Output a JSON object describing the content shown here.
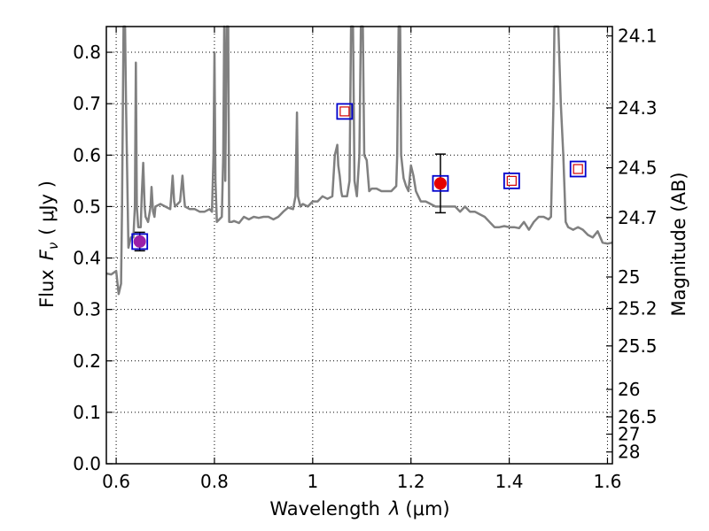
{
  "chart_data": {
    "type": "line",
    "xlabel_text": "Wavelength",
    "xlabel_symbol": "λ",
    "xlabel_unit": "(μm)",
    "ylabel_text": "Flux",
    "ylabel_symbol": "F",
    "ylabel_sub": "ν",
    "ylabel_unit": "( μJy )",
    "y2label": "Magnitude (AB)",
    "xlim": [
      0.58,
      1.61
    ],
    "ylim": [
      0.0,
      0.85
    ],
    "grid": true,
    "x_ticks": [
      {
        "value": 0.6,
        "label": "0.6"
      },
      {
        "value": 0.8,
        "label": "0.8"
      },
      {
        "value": 1.0,
        "label": "1"
      },
      {
        "value": 1.2,
        "label": "1.2"
      },
      {
        "value": 1.4,
        "label": "1.4"
      },
      {
        "value": 1.6,
        "label": "1.6"
      }
    ],
    "y_ticks": [
      {
        "value": 0.0,
        "label": "0.0"
      },
      {
        "value": 0.1,
        "label": "0.1"
      },
      {
        "value": 0.2,
        "label": "0.2"
      },
      {
        "value": 0.3,
        "label": "0.3"
      },
      {
        "value": 0.4,
        "label": "0.4"
      },
      {
        "value": 0.5,
        "label": "0.5"
      },
      {
        "value": 0.6,
        "label": "0.6"
      },
      {
        "value": 0.7,
        "label": "0.7"
      },
      {
        "value": 0.8,
        "label": "0.8"
      }
    ],
    "y2_ticks": [
      {
        "mag": 24.1,
        "label": "24.1"
      },
      {
        "mag": 24.3,
        "label": "24.3"
      },
      {
        "mag": 24.5,
        "label": "24.5"
      },
      {
        "mag": 24.7,
        "label": "24.7"
      },
      {
        "mag": 25.0,
        "label": "25"
      },
      {
        "mag": 25.2,
        "label": "25.2"
      },
      {
        "mag": 25.5,
        "label": "25.5"
      },
      {
        "mag": 26.0,
        "label": "26"
      },
      {
        "mag": 26.5,
        "label": "26.5"
      },
      {
        "mag": 27.0,
        "label": "27"
      },
      {
        "mag": 28.0,
        "label": "28"
      }
    ],
    "spectrum": {
      "color": "#808080",
      "x": [
        0.58,
        0.59,
        0.6,
        0.605,
        0.61,
        0.612,
        0.615,
        0.618,
        0.62,
        0.625,
        0.63,
        0.635,
        0.638,
        0.64,
        0.642,
        0.645,
        0.65,
        0.652,
        0.655,
        0.658,
        0.66,
        0.665,
        0.67,
        0.672,
        0.675,
        0.678,
        0.68,
        0.69,
        0.7,
        0.71,
        0.712,
        0.715,
        0.718,
        0.72,
        0.73,
        0.735,
        0.738,
        0.74,
        0.75,
        0.76,
        0.77,
        0.78,
        0.79,
        0.795,
        0.798,
        0.8,
        0.802,
        0.805,
        0.81,
        0.815,
        0.818,
        0.82,
        0.822,
        0.825,
        0.828,
        0.83,
        0.835,
        0.84,
        0.85,
        0.86,
        0.87,
        0.88,
        0.89,
        0.9,
        0.91,
        0.92,
        0.93,
        0.94,
        0.95,
        0.96,
        0.965,
        0.968,
        0.97,
        0.975,
        0.98,
        0.99,
        1.0,
        1.01,
        1.02,
        1.03,
        1.04,
        1.045,
        1.05,
        1.052,
        1.055,
        1.058,
        1.06,
        1.065,
        1.07,
        1.075,
        1.078,
        1.08,
        1.082,
        1.085,
        1.09,
        1.095,
        1.098,
        1.1,
        1.102,
        1.105,
        1.11,
        1.115,
        1.12,
        1.13,
        1.14,
        1.15,
        1.16,
        1.17,
        1.172,
        1.175,
        1.178,
        1.18,
        1.185,
        1.19,
        1.195,
        1.2,
        1.205,
        1.21,
        1.215,
        1.22,
        1.23,
        1.24,
        1.25,
        1.26,
        1.27,
        1.28,
        1.29,
        1.3,
        1.31,
        1.32,
        1.33,
        1.34,
        1.35,
        1.36,
        1.37,
        1.38,
        1.39,
        1.4,
        1.41,
        1.42,
        1.43,
        1.44,
        1.45,
        1.46,
        1.47,
        1.48,
        1.485,
        1.49,
        1.492,
        1.495,
        1.5,
        1.505,
        1.51,
        1.515,
        1.52,
        1.53,
        1.54,
        1.55,
        1.56,
        1.57,
        1.58,
        1.59,
        1.6,
        1.61
      ],
      "y": [
        0.37,
        0.368,
        0.375,
        0.33,
        0.35,
        0.5,
        0.85,
        0.85,
        0.7,
        0.42,
        0.44,
        0.44,
        0.5,
        0.78,
        0.5,
        0.46,
        0.46,
        0.52,
        0.585,
        0.5,
        0.48,
        0.47,
        0.5,
        0.538,
        0.49,
        0.48,
        0.5,
        0.505,
        0.5,
        0.495,
        0.52,
        0.56,
        0.51,
        0.5,
        0.51,
        0.56,
        0.52,
        0.5,
        0.495,
        0.495,
        0.49,
        0.49,
        0.495,
        0.49,
        0.6,
        0.8,
        0.55,
        0.47,
        0.475,
        0.48,
        0.6,
        0.85,
        0.55,
        0.85,
        0.85,
        0.47,
        0.47,
        0.472,
        0.468,
        0.48,
        0.475,
        0.48,
        0.478,
        0.48,
        0.48,
        0.475,
        0.48,
        0.49,
        0.498,
        0.495,
        0.52,
        0.683,
        0.52,
        0.5,
        0.505,
        0.5,
        0.51,
        0.51,
        0.52,
        0.515,
        0.52,
        0.6,
        0.62,
        0.58,
        0.56,
        0.53,
        0.52,
        0.52,
        0.52,
        0.55,
        0.85,
        0.85,
        0.85,
        0.55,
        0.52,
        0.6,
        0.85,
        0.85,
        0.85,
        0.6,
        0.59,
        0.53,
        0.535,
        0.535,
        0.53,
        0.53,
        0.53,
        0.54,
        0.6,
        0.85,
        0.85,
        0.6,
        0.555,
        0.54,
        0.53,
        0.58,
        0.56,
        0.53,
        0.52,
        0.51,
        0.51,
        0.505,
        0.5,
        0.5,
        0.5,
        0.5,
        0.5,
        0.49,
        0.5,
        0.49,
        0.49,
        0.485,
        0.48,
        0.47,
        0.46,
        0.46,
        0.462,
        0.46,
        0.46,
        0.458,
        0.47,
        0.455,
        0.47,
        0.48,
        0.48,
        0.475,
        0.48,
        0.7,
        0.85,
        0.85,
        0.85,
        0.7,
        0.6,
        0.47,
        0.46,
        0.455,
        0.46,
        0.455,
        0.445,
        0.44,
        0.452,
        0.43,
        0.428,
        0.43
      ]
    },
    "points": [
      {
        "x": 0.648,
        "y": 0.432,
        "marker": "filled",
        "color": "#9b1fa8",
        "box": true,
        "yerr": 0.018
      },
      {
        "x": 1.065,
        "y": 0.685,
        "marker": "open",
        "color": "#d40000",
        "box": true
      },
      {
        "x": 1.26,
        "y": 0.545,
        "marker": "filled",
        "color": "#e60000",
        "box": true,
        "yerr": 0.057
      },
      {
        "x": 1.405,
        "y": 0.55,
        "marker": "open",
        "color": "#d40000",
        "box": true
      },
      {
        "x": 1.54,
        "y": 0.573,
        "marker": "open",
        "color": "#d40000",
        "box": true
      }
    ],
    "box_color": "#0000cc"
  }
}
